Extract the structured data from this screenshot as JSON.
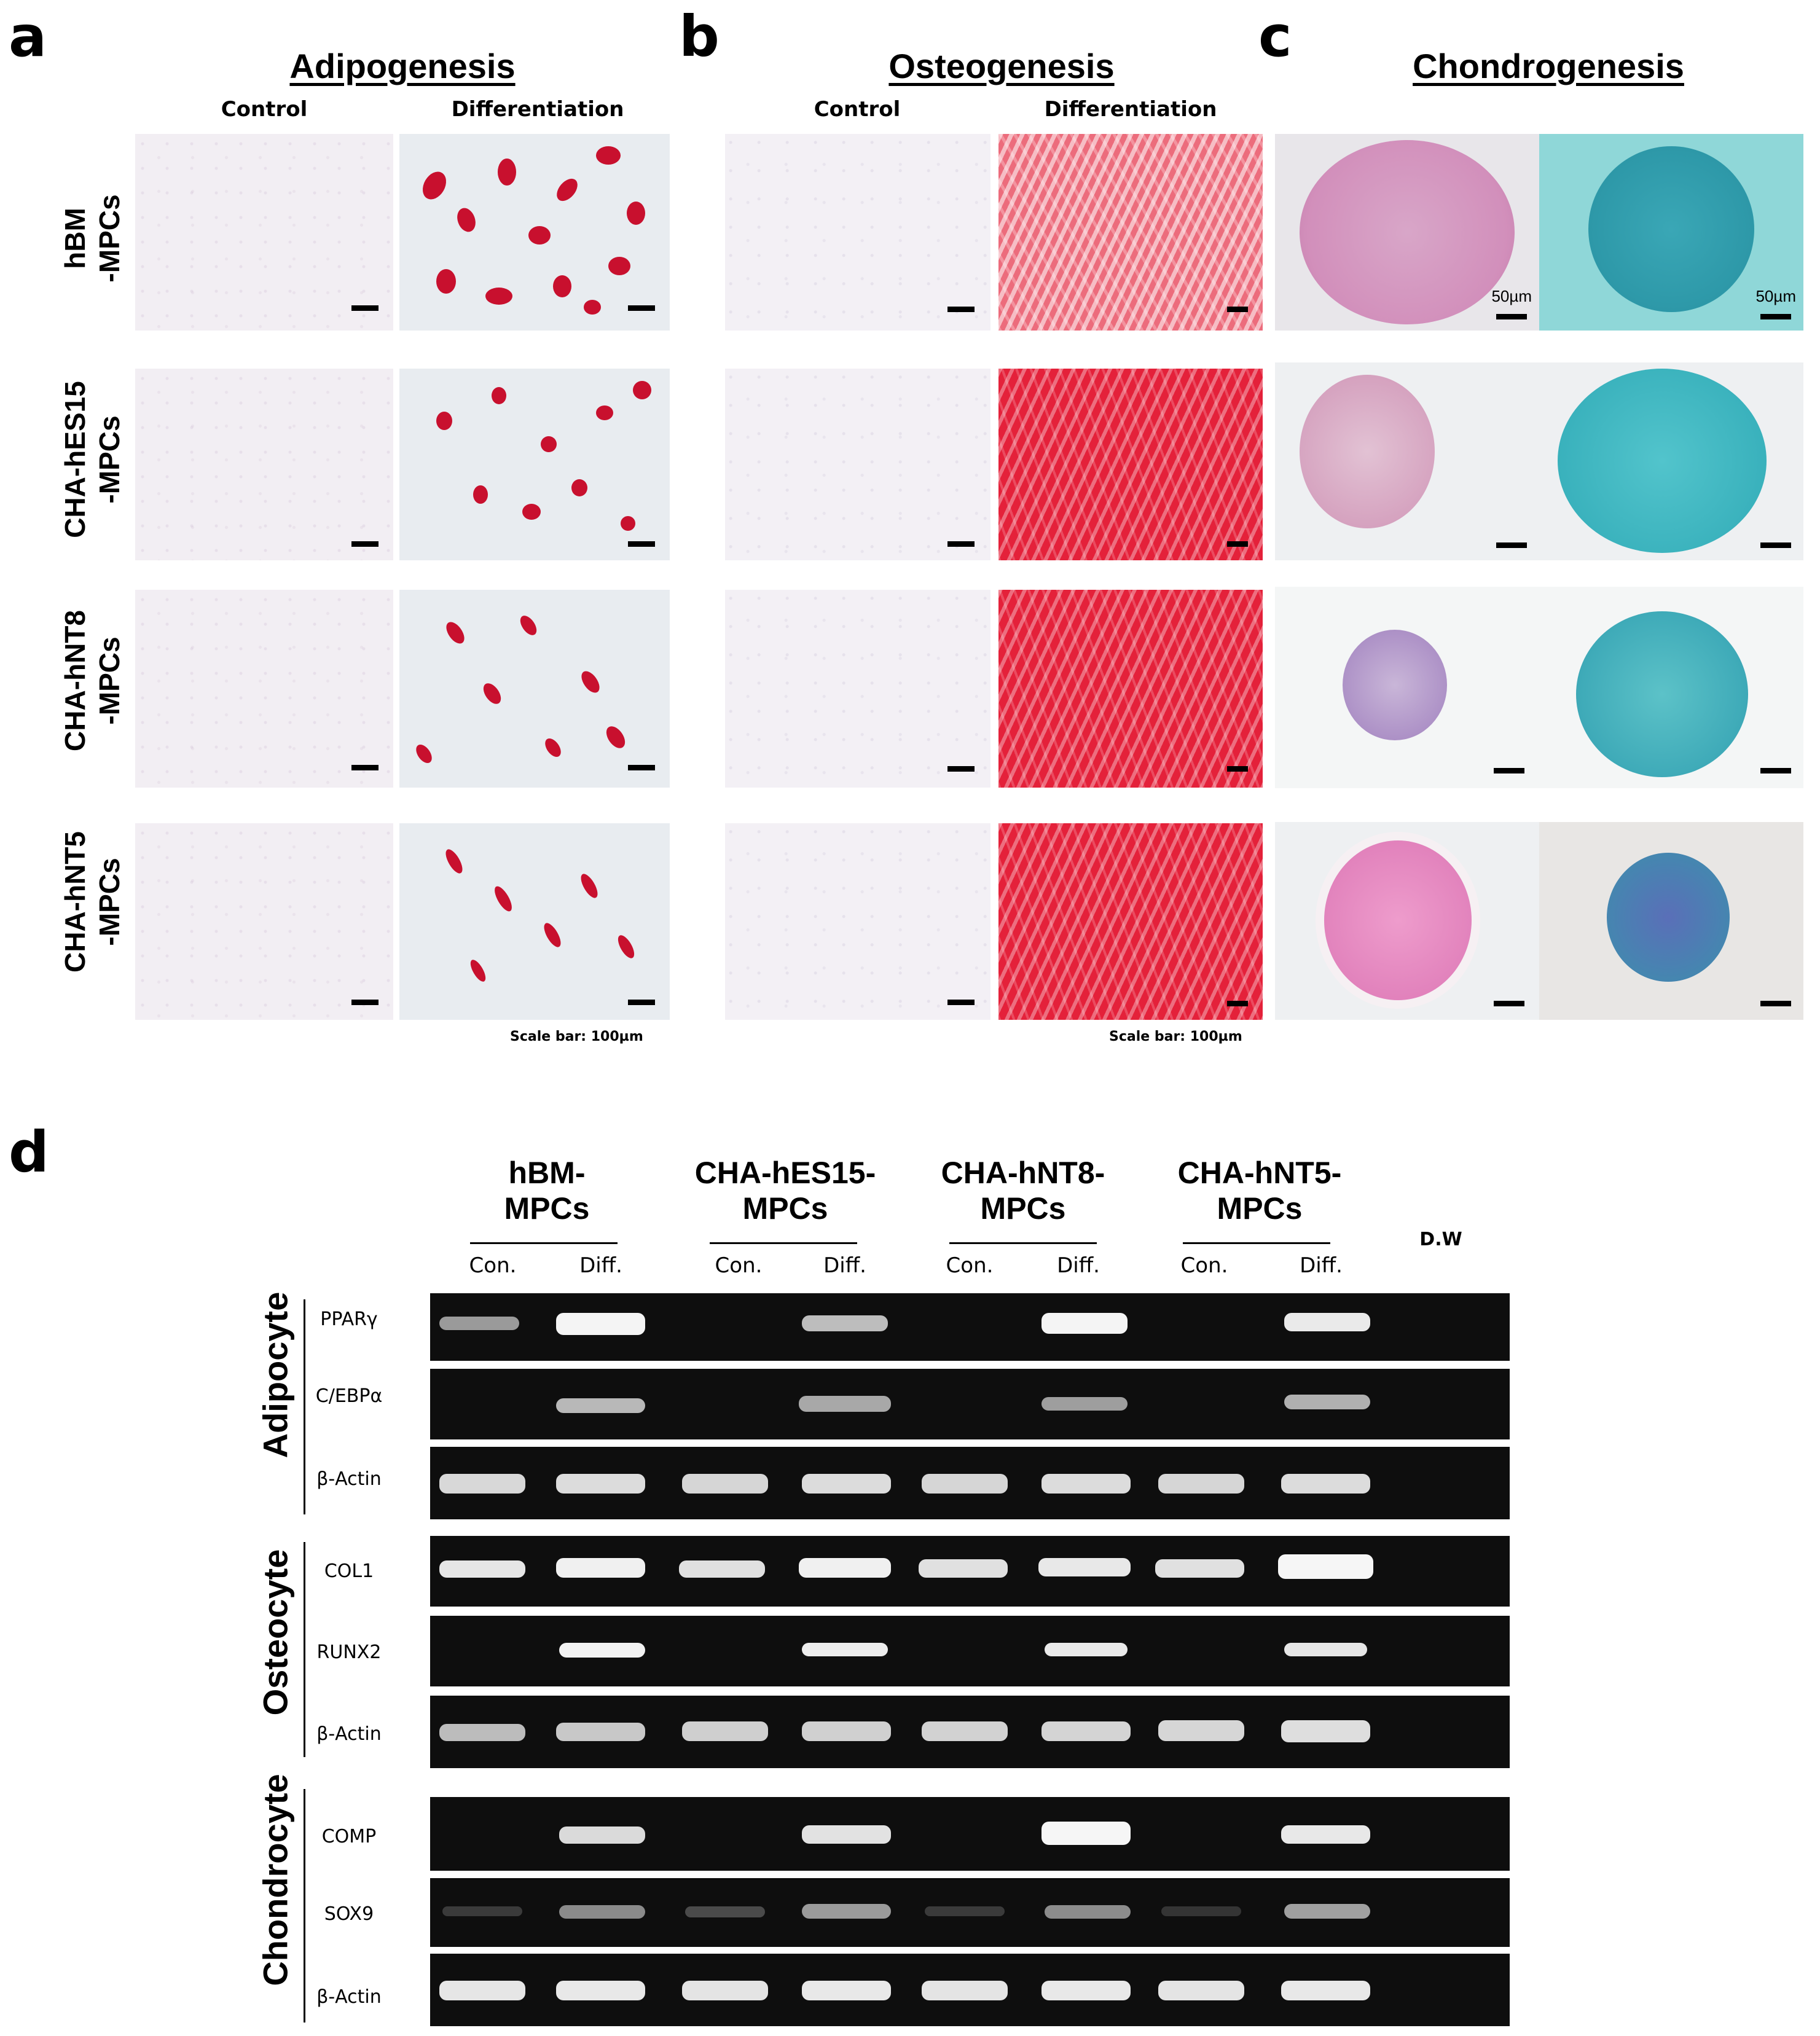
{
  "panel_letters": {
    "a": "a",
    "b": "b",
    "c": "c",
    "d": "d"
  },
  "section_titles": {
    "adipogenesis": "Adipogenesis",
    "osteogenesis": "Osteogenesis",
    "chondrogenesis": "Chondrogenesis"
  },
  "column_headers": {
    "control": "Control",
    "differentiation": "Differentiation"
  },
  "cell_lines": [
    {
      "id": "hbm",
      "line1": "hBM",
      "line2": "-MPCs"
    },
    {
      "id": "hes15",
      "line1": "CHA-hES15",
      "line2": "-MPCs"
    },
    {
      "id": "hnt8",
      "line1": "CHA-hNT8",
      "line2": "-MPCs"
    },
    {
      "id": "hnt5",
      "line1": "CHA-hNT5",
      "line2": "-MPCs"
    }
  ],
  "scale_bar_text": "Scale bar: 100µm",
  "chondro_scale_text": "50µm",
  "gel": {
    "groups": [
      {
        "line1": "hBM-",
        "line2": "MPCs"
      },
      {
        "line1": "CHA-hES15-",
        "line2": "MPCs"
      },
      {
        "line1": "CHA-hNT8-",
        "line2": "MPCs"
      },
      {
        "line1": "CHA-hNT5-",
        "line2": "MPCs"
      }
    ],
    "lane_labels": {
      "con": "Con.",
      "diff": "Diff.",
      "dw": "D.W"
    },
    "cell_types": [
      "Adipocyte",
      "Osteocyte",
      "Chondrocyte"
    ],
    "genes": {
      "adipocyte": [
        "PPARγ",
        "C/EBPα",
        "β-Actin"
      ],
      "osteocyte": [
        "COL1",
        "RUNX2",
        "β-Actin"
      ],
      "chondrocyte": [
        "COMP",
        "SOX9",
        "β-Actin"
      ]
    }
  },
  "colors": {
    "oil_red": "#c8102e",
    "alizarin": "#e4213a",
    "alcian_blue": "#3fb7c0",
    "he_pink": "#d9a0c4",
    "gel_bg": "#0e0e0e",
    "band": "#f4f4f4"
  }
}
